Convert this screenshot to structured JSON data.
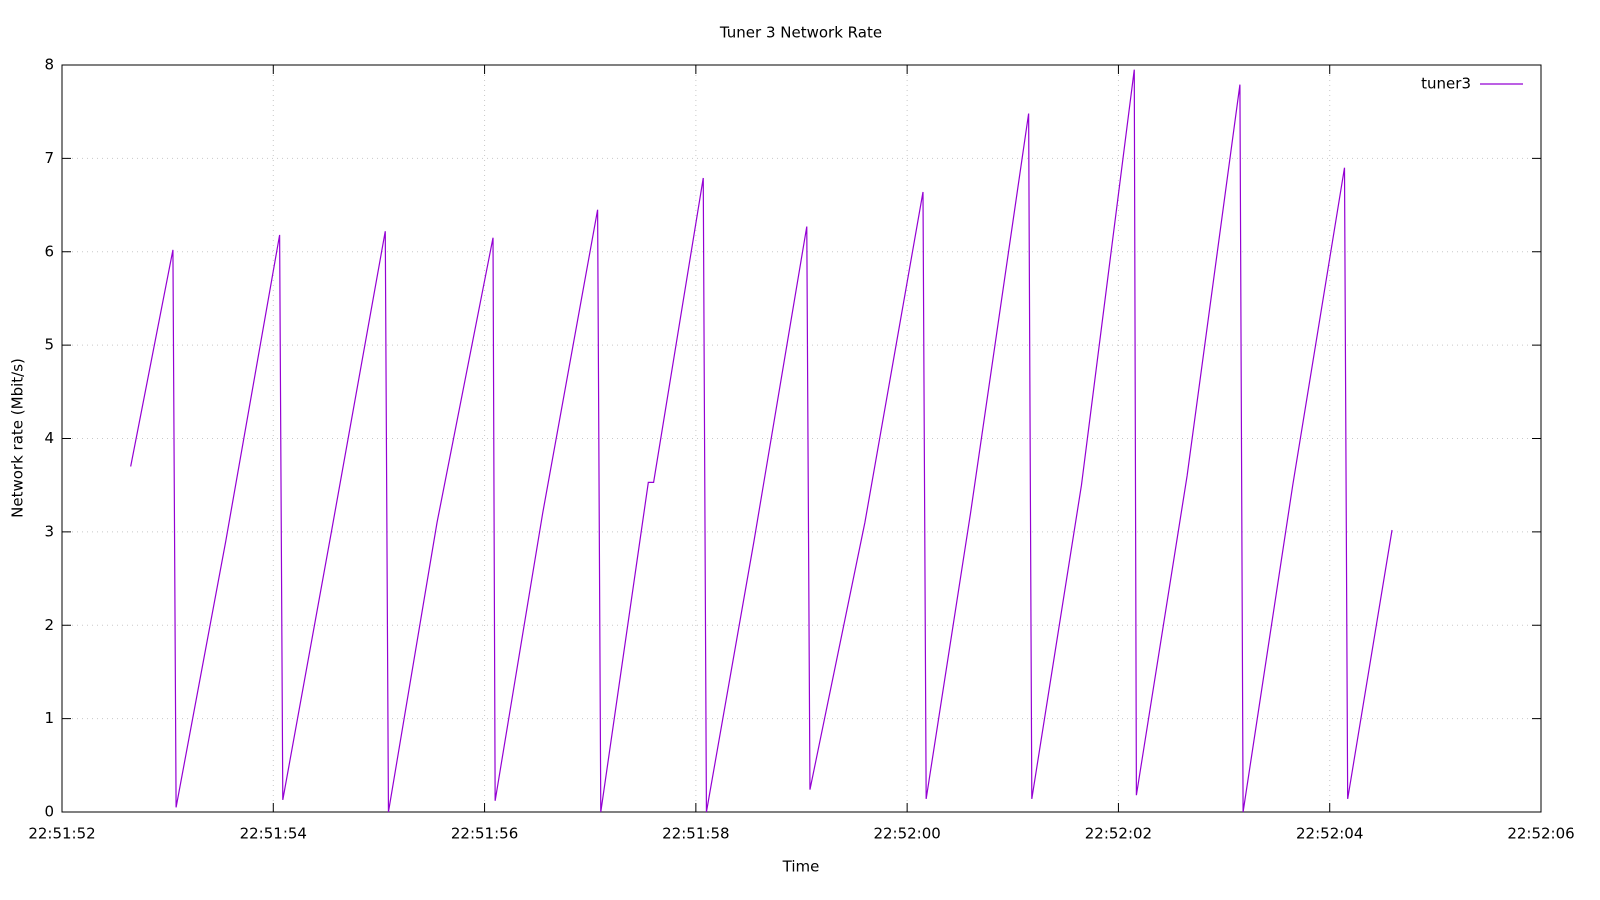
{
  "chart_data": {
    "type": "line",
    "title": "Tuner 3 Network Rate",
    "x_label": "Time",
    "y_label": "Network rate (Mbit/s)",
    "x": [
      82312.65,
      82313.05,
      82313.08,
      82313.55,
      82314.06,
      82314.09,
      82314.55,
      82315.06,
      82315.09,
      82315.55,
      82316.08,
      82316.1,
      82316.55,
      82317.07,
      82317.1,
      82317.55,
      82317.6,
      82318.07,
      82318.1,
      82318.55,
      82319.05,
      82319.08,
      82319.6,
      82320.15,
      82320.18,
      82320.6,
      82321.15,
      82321.18,
      82321.65,
      82322.15,
      82322.17,
      82322.65,
      82323.15,
      82323.18,
      82323.65,
      82324.14,
      82324.17,
      82324.59
    ],
    "series": [
      {
        "name": "tuner3",
        "color": "#9400d3",
        "values": [
          3.7,
          6.02,
          0.05,
          2.9,
          6.18,
          0.13,
          3.0,
          6.22,
          0.0,
          3.1,
          6.15,
          0.12,
          3.2,
          6.45,
          0.0,
          3.53,
          3.53,
          6.79,
          0.0,
          2.9,
          6.27,
          0.24,
          3.1,
          6.64,
          0.14,
          3.2,
          7.48,
          0.14,
          3.5,
          7.95,
          0.18,
          3.6,
          7.79,
          0.0,
          3.5,
          6.9,
          0.14,
          3.02
        ]
      }
    ],
    "xlim": [
      82312,
      82326
    ],
    "xticks": [
      {
        "value": 82312,
        "label": "22:51:52"
      },
      {
        "value": 82314,
        "label": "22:51:54"
      },
      {
        "value": 82316,
        "label": "22:51:56"
      },
      {
        "value": 82318,
        "label": "22:51:58"
      },
      {
        "value": 82320,
        "label": "22:52:00"
      },
      {
        "value": 82322,
        "label": "22:52:02"
      },
      {
        "value": 82324,
        "label": "22:52:04"
      },
      {
        "value": 82326,
        "label": "22:52:06"
      }
    ],
    "ylim": [
      0,
      8
    ],
    "yticks": [
      0,
      1,
      2,
      3,
      4,
      5,
      6,
      7,
      8
    ],
    "grid": true,
    "legend": "top-right"
  }
}
